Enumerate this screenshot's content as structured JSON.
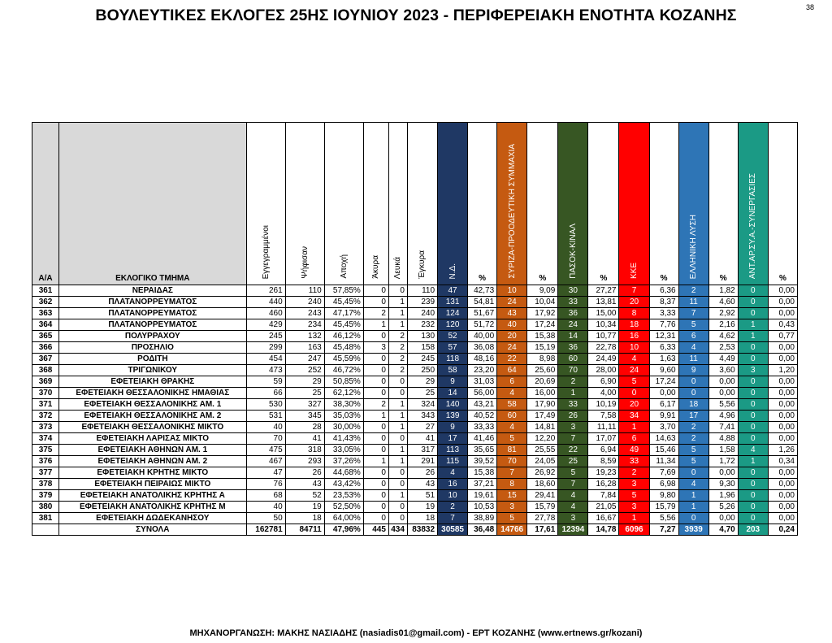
{
  "title": "ΒΟΥΛΕΥΤΙΚΕΣ ΕΚΛΟΓΕΣ 25ΗΣ ΙΟΥΝΙΟΥ 2023 - ΠΕΡΙΦΕΡΕΙΑΚΗ ΕΝΟΤΗΤΑ ΚΟΖΑΝΗΣ",
  "page_number": "38",
  "footer": "ΜΗΧΑΝΟΡΓΑΝΩΣΗ: ΜΑΚΗΣ ΝΑΣΙΑΔΗΣ (nasiadis01@gmail.com) - ΕΡΤ ΚΟΖΑΝΗΣ (www.ertnews.gr/kozani)",
  "colors": {
    "nd": "#1f3864",
    "syriza": "#c55a11",
    "pasok": "#375623",
    "kke": "#ff0000",
    "elliniki_lysi": "#2e75b6",
    "antarsya": "#1b9a85"
  },
  "headers": {
    "aa": "Α/Α",
    "tmima": "ΕΚΛΟΓΙΚΟ ΤΜΗΜΑ",
    "eggegrammenoi": "Εγγεγραμμένοι",
    "psifisan": "Ψήφισαν",
    "apoxi": "Αποχή",
    "akyra": "Άκυρα",
    "lefka": "Λευκά",
    "egkyra": "Έγκυρα",
    "nd": "Ν.Δ.",
    "syriza": "ΣΥΡΙΖΑ-ΠΡΟΟΔΕΥΤΙΚΗ ΣΥΜΜΑΧΙΑ",
    "pasok": "ΠΑΣΟΚ-ΚΙΝΑΛ",
    "kke": "ΚΚΕ",
    "elliniki_lysi": "ΕΛΛΗΝΙΚΗ ΛΥΣΗ",
    "antarsya": "ΑΝΤ.ΑΡ.ΣΥ.Α.-ΣΥΝΕΡΓΑΣΙΕΣ",
    "pct": "%"
  },
  "rows": [
    [
      "361",
      "ΝΕΡΑΙΔΑΣ",
      "261",
      "110",
      "57,85%",
      "0",
      "0",
      "110",
      "47",
      "42,73",
      "10",
      "9,09",
      "30",
      "27,27",
      "7",
      "6,36",
      "2",
      "1,82",
      "0",
      "0,00"
    ],
    [
      "362",
      "ΠΛΑΤΑΝΟΡΡΕΥΜΑΤΟΣ",
      "440",
      "240",
      "45,45%",
      "0",
      "1",
      "239",
      "131",
      "54,81",
      "24",
      "10,04",
      "33",
      "13,81",
      "20",
      "8,37",
      "11",
      "4,60",
      "0",
      "0,00"
    ],
    [
      "363",
      "ΠΛΑΤΑΝΟΡΡΕΥΜΑΤΟΣ",
      "460",
      "243",
      "47,17%",
      "2",
      "1",
      "240",
      "124",
      "51,67",
      "43",
      "17,92",
      "36",
      "15,00",
      "8",
      "3,33",
      "7",
      "2,92",
      "0",
      "0,00"
    ],
    [
      "364",
      "ΠΛΑΤΑΝΟΡΡΕΥΜΑΤΟΣ",
      "429",
      "234",
      "45,45%",
      "1",
      "1",
      "232",
      "120",
      "51,72",
      "40",
      "17,24",
      "24",
      "10,34",
      "18",
      "7,76",
      "5",
      "2,16",
      "1",
      "0,43"
    ],
    [
      "365",
      "ΠΟΛΥΡΡΑΧΟΥ",
      "245",
      "132",
      "46,12%",
      "0",
      "2",
      "130",
      "52",
      "40,00",
      "20",
      "15,38",
      "14",
      "10,77",
      "16",
      "12,31",
      "6",
      "4,62",
      "1",
      "0,77"
    ],
    [
      "366",
      "ΠΡΟΣΗΛΙΟ",
      "299",
      "163",
      "45,48%",
      "3",
      "2",
      "158",
      "57",
      "36,08",
      "24",
      "15,19",
      "36",
      "22,78",
      "10",
      "6,33",
      "4",
      "2,53",
      "0",
      "0,00"
    ],
    [
      "367",
      "ΡΟΔΙΤΗ",
      "454",
      "247",
      "45,59%",
      "0",
      "2",
      "245",
      "118",
      "48,16",
      "22",
      "8,98",
      "60",
      "24,49",
      "4",
      "1,63",
      "11",
      "4,49",
      "0",
      "0,00"
    ],
    [
      "368",
      "ΤΡΙΓΩΝΙΚΟΥ",
      "473",
      "252",
      "46,72%",
      "0",
      "2",
      "250",
      "58",
      "23,20",
      "64",
      "25,60",
      "70",
      "28,00",
      "24",
      "9,60",
      "9",
      "3,60",
      "3",
      "1,20"
    ],
    [
      "369",
      "ΕΦΕΤΕΙΑΚΗ ΘΡΑΚΗΣ",
      "59",
      "29",
      "50,85%",
      "0",
      "0",
      "29",
      "9",
      "31,03",
      "6",
      "20,69",
      "2",
      "6,90",
      "5",
      "17,24",
      "0",
      "0,00",
      "0",
      "0,00"
    ],
    [
      "370",
      "ΕΦΕΤΕΙΑΚΗ ΘΕΣΣΑΛΟΝΙΚΗΣ ΗΜΑΘΙΑΣ",
      "66",
      "25",
      "62,12%",
      "0",
      "0",
      "25",
      "14",
      "56,00",
      "4",
      "16,00",
      "1",
      "4,00",
      "0",
      "0,00",
      "0",
      "0,00",
      "0",
      "0,00"
    ],
    [
      "371",
      "ΕΦΕΤΕΙΑΚΗ ΘΕΣΣΑΛΟΝΙΚΗΣ ΑΜ. 1",
      "530",
      "327",
      "38,30%",
      "2",
      "1",
      "324",
      "140",
      "43,21",
      "58",
      "17,90",
      "33",
      "10,19",
      "20",
      "6,17",
      "18",
      "5,56",
      "0",
      "0,00"
    ],
    [
      "372",
      "ΕΦΕΤΕΙΑΚΗ ΘΕΣΣΑΛΟΝΙΚΗΣ ΑΜ. 2",
      "531",
      "345",
      "35,03%",
      "1",
      "1",
      "343",
      "139",
      "40,52",
      "60",
      "17,49",
      "26",
      "7,58",
      "34",
      "9,91",
      "17",
      "4,96",
      "0",
      "0,00"
    ],
    [
      "373",
      "ΕΦΕΤΕΙΑΚΗ ΘΕΣΣΑΛΟΝΙΚΗΣ ΜΙΚΤΟ",
      "40",
      "28",
      "30,00%",
      "0",
      "1",
      "27",
      "9",
      "33,33",
      "4",
      "14,81",
      "3",
      "11,11",
      "1",
      "3,70",
      "2",
      "7,41",
      "0",
      "0,00"
    ],
    [
      "374",
      "ΕΦΕΤΕΙΑΚΗ ΛΑΡΙΣΑΣ ΜΙΚΤΟ",
      "70",
      "41",
      "41,43%",
      "0",
      "0",
      "41",
      "17",
      "41,46",
      "5",
      "12,20",
      "7",
      "17,07",
      "6",
      "14,63",
      "2",
      "4,88",
      "0",
      "0,00"
    ],
    [
      "375",
      "ΕΦΕΤΕΙΑΚΗ ΑΘΗΝΩΝ ΑΜ. 1",
      "475",
      "318",
      "33,05%",
      "0",
      "1",
      "317",
      "113",
      "35,65",
      "81",
      "25,55",
      "22",
      "6,94",
      "49",
      "15,46",
      "5",
      "1,58",
      "4",
      "1,26"
    ],
    [
      "376",
      "ΕΦΕΤΕΙΑΚΗ ΑΘΗΝΩΝ ΑΜ. 2",
      "467",
      "293",
      "37,26%",
      "1",
      "1",
      "291",
      "115",
      "39,52",
      "70",
      "24,05",
      "25",
      "8,59",
      "33",
      "11,34",
      "5",
      "1,72",
      "1",
      "0,34"
    ],
    [
      "377",
      "ΕΦΕΤΕΙΑΚΗ ΚΡΗΤΗΣ ΜΙΚΤΟ",
      "47",
      "26",
      "44,68%",
      "0",
      "0",
      "26",
      "4",
      "15,38",
      "7",
      "26,92",
      "5",
      "19,23",
      "2",
      "7,69",
      "0",
      "0,00",
      "0",
      "0,00"
    ],
    [
      "378",
      "ΕΦΕΤΕΙΑΚΗ ΠΕΙΡΑΙΩΣ ΜΙΚΤΟ",
      "76",
      "43",
      "43,42%",
      "0",
      "0",
      "43",
      "16",
      "37,21",
      "8",
      "18,60",
      "7",
      "16,28",
      "3",
      "6,98",
      "4",
      "9,30",
      "0",
      "0,00"
    ],
    [
      "379",
      "ΕΦΕΤΕΙΑΚΗ ΑΝΑΤΟΛΙΚΗΣ ΚΡΗΤΗΣ Α",
      "68",
      "52",
      "23,53%",
      "0",
      "1",
      "51",
      "10",
      "19,61",
      "15",
      "29,41",
      "4",
      "7,84",
      "5",
      "9,80",
      "1",
      "1,96",
      "0",
      "0,00"
    ],
    [
      "380",
      "ΕΦΕΤΕΙΑΚΗ ΑΝΑΤΟΛΙΚΗΣ ΚΡΗΤΗΣ Μ",
      "40",
      "19",
      "52,50%",
      "0",
      "0",
      "19",
      "2",
      "10,53",
      "3",
      "15,79",
      "4",
      "21,05",
      "3",
      "15,79",
      "1",
      "5,26",
      "0",
      "0,00"
    ],
    [
      "381",
      "ΕΦΕΤΕΙΑΚΗ ΔΩΔΕΚΑΝΗΣΟΥ",
      "50",
      "18",
      "64,00%",
      "0",
      "0",
      "18",
      "7",
      "38,89",
      "5",
      "27,78",
      "3",
      "16,67",
      "1",
      "5,56",
      "0",
      "0,00",
      "0",
      "0,00"
    ]
  ],
  "totals": [
    "",
    "ΣΥΝΟΛΑ",
    "162781",
    "84711",
    "47,96%",
    "445",
    "434",
    "83832",
    "30585",
    "36,48",
    "14766",
    "17,61",
    "12394",
    "14,78",
    "6096",
    "7,27",
    "3939",
    "4,70",
    "203",
    "0,24"
  ]
}
